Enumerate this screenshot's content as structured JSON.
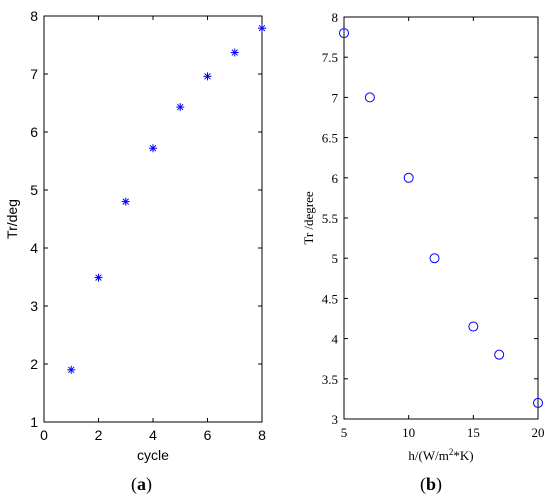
{
  "chart_data": [
    {
      "type": "scatter",
      "panel_label": {
        "open": "(",
        "letter": "a",
        "close": ")"
      },
      "xlabel": "cycle",
      "ylabel": "Tr/deg",
      "xlim": [
        0,
        8
      ],
      "ylim": [
        1,
        8
      ],
      "x_ticks": [
        0,
        2,
        4,
        6,
        8
      ],
      "y_ticks": [
        1,
        2,
        3,
        4,
        5,
        6,
        7,
        8
      ],
      "marker": "asterisk",
      "color": "#0000ff",
      "grid": false,
      "points": [
        {
          "x": 1,
          "y": 1.9
        },
        {
          "x": 2,
          "y": 3.49
        },
        {
          "x": 3,
          "y": 4.8
        },
        {
          "x": 4,
          "y": 5.72
        },
        {
          "x": 5,
          "y": 6.43
        },
        {
          "x": 6,
          "y": 6.96
        },
        {
          "x": 7,
          "y": 7.37
        },
        {
          "x": 8,
          "y": 7.79
        }
      ]
    },
    {
      "type": "scatter",
      "panel_label": {
        "open": "(",
        "letter": "b",
        "close": ")"
      },
      "xlabel": {
        "prefix": "h/(W/m",
        "sup": "2",
        "suffix": "*K)"
      },
      "ylabel": "Tr /degree",
      "xlim": [
        5,
        20
      ],
      "ylim": [
        3,
        8
      ],
      "x_ticks": [
        5,
        10,
        15,
        20
      ],
      "y_ticks": [
        "3",
        "3.5",
        "4",
        "4.5",
        "5",
        "5.5",
        "6",
        "6.5",
        "7",
        "7.5",
        "8"
      ],
      "marker": "circle",
      "color": "#0000ff",
      "grid": false,
      "points": [
        {
          "x": 5,
          "y": 7.8
        },
        {
          "x": 7,
          "y": 7.0
        },
        {
          "x": 10,
          "y": 6.0
        },
        {
          "x": 12,
          "y": 5.0
        },
        {
          "x": 15,
          "y": 4.15
        },
        {
          "x": 17,
          "y": 3.8
        },
        {
          "x": 20,
          "y": 3.2
        }
      ]
    }
  ]
}
